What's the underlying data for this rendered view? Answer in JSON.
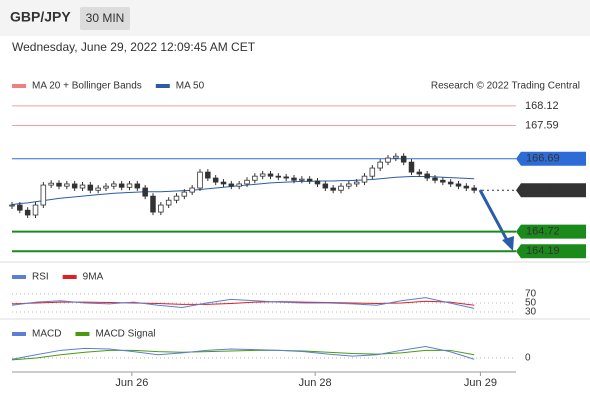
{
  "header": {
    "symbol": "GBP/JPY",
    "timeframe": "30 MIN",
    "date": "Wednesday, June 29, 2022 12:09:45 AM CET"
  },
  "chart_data": {
    "type": "candlestick",
    "legend": [
      "MA 20 + Bollinger Bands",
      "MA 50"
    ],
    "legend_colors": [
      "#f08080",
      "#2a5caa"
    ],
    "source": "Research © 2022 Trading Central",
    "xlim": [
      0,
      60
    ],
    "xticks": [
      {
        "value": 15.3,
        "label": "Jun 26"
      },
      {
        "value": 38.7,
        "label": "Jun 28"
      },
      {
        "value": 59.8,
        "label": "Jun 29"
      }
    ],
    "ylim": [
      163.9,
      168.55
    ],
    "levels": [
      {
        "value": 168.12,
        "color": "#e03030",
        "kind": "resistance"
      },
      {
        "value": 167.59,
        "color": "#e03030",
        "kind": "resistance"
      },
      {
        "value": 166.69,
        "color": "#2d6bd6",
        "kind": "pivot"
      },
      {
        "value": 165.84,
        "color": "#333333",
        "kind": "last"
      },
      {
        "value": 164.72,
        "color": "#1a8a1a",
        "kind": "support"
      },
      {
        "value": 164.19,
        "color": "#1a8a1a",
        "kind": "support"
      }
    ],
    "close": [
      165.44,
      165.3,
      165.17,
      165.44,
      165.98,
      166.03,
      165.95,
      166.01,
      165.9,
      165.98,
      165.84,
      165.9,
      165.95,
      166.01,
      165.92,
      166.01,
      165.9,
      165.68,
      165.25,
      165.44,
      165.57,
      165.68,
      165.79,
      165.9,
      166.33,
      166.17,
      166.06,
      166.01,
      165.95,
      166.01,
      166.11,
      166.22,
      166.28,
      166.22,
      166.2,
      166.17,
      166.11,
      166.14,
      166.09,
      166.01,
      165.9,
      165.84,
      165.95,
      166.01,
      166.06,
      166.22,
      166.44,
      166.6,
      166.71,
      166.76,
      166.6,
      166.33,
      166.28,
      166.17,
      166.11,
      166.06,
      166.01,
      165.95,
      165.9,
      165.84
    ],
    "ma50": [
      165.45,
      165.48,
      165.5,
      165.53,
      165.56,
      165.59,
      165.62,
      165.64,
      165.66,
      165.68,
      165.7,
      165.72,
      165.74,
      165.76,
      165.77,
      165.78,
      165.79,
      165.8,
      165.8,
      165.8,
      165.81,
      165.82,
      165.83,
      165.84,
      165.86,
      165.88,
      165.9,
      165.92,
      165.94,
      165.96,
      165.98,
      166.0,
      166.02,
      166.04,
      166.05,
      166.06,
      166.07,
      166.08,
      166.08,
      166.09,
      166.09,
      166.09,
      166.1,
      166.1,
      166.11,
      166.12,
      166.13,
      166.15,
      166.17,
      166.19,
      166.2,
      166.21,
      166.21,
      166.21,
      166.2,
      166.19,
      166.18,
      166.17,
      166.16,
      166.15
    ],
    "rsi": {
      "legend": [
        "RSI",
        "9MA"
      ],
      "colors": [
        "#5b7fd6",
        "#e02020"
      ],
      "ylim": [
        20,
        80
      ],
      "yticks": [
        70,
        50,
        30
      ],
      "values": [
        45,
        52,
        55,
        50,
        48,
        52,
        45,
        40,
        50,
        58,
        55,
        52,
        50,
        50,
        48,
        45,
        55,
        62,
        50,
        38
      ],
      "ma": [
        48,
        50,
        52,
        52,
        51,
        50,
        49,
        47,
        47,
        49,
        52,
        53,
        52,
        51,
        50,
        49,
        50,
        54,
        52,
        45
      ]
    },
    "macd": {
      "legend": [
        "MACD",
        "MACD Signal"
      ],
      "colors": [
        "#5b7fd6",
        "#4a9a10"
      ],
      "ylim": [
        -0.25,
        0.25
      ],
      "yticks": [
        0
      ],
      "values": [
        -0.02,
        0.05,
        0.12,
        0.15,
        0.14,
        0.1,
        0.05,
        0.08,
        0.12,
        0.14,
        0.13,
        0.12,
        0.1,
        0.06,
        0.03,
        0.05,
        0.12,
        0.18,
        0.1,
        -0.02
      ],
      "signal": [
        -0.03,
        0.0,
        0.05,
        0.09,
        0.12,
        0.12,
        0.1,
        0.09,
        0.1,
        0.11,
        0.12,
        0.12,
        0.11,
        0.09,
        0.07,
        0.06,
        0.08,
        0.12,
        0.12,
        0.05
      ]
    }
  }
}
